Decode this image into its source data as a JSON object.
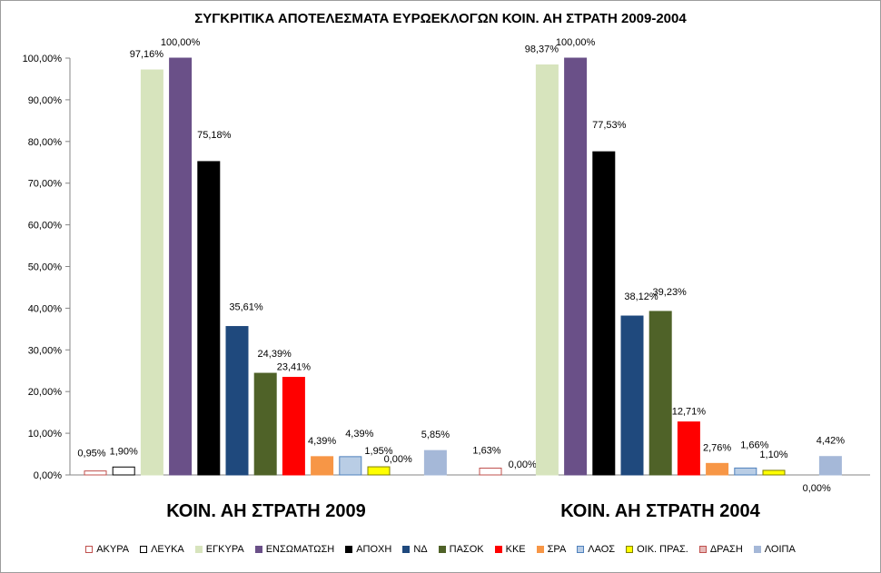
{
  "chart_data": {
    "type": "bar",
    "title": "ΣΥΓΚΡΙΤΙΚΑ ΑΠΟΤΕΛΕΣΜΑΤΑ ΕΥΡΩΕΚΛΟΓΩΝ ΚΟΙΝ. ΑΗ ΣΤΡΑΤΗ 2009-2004",
    "xlabel": "",
    "ylabel": "",
    "ylim": [
      0,
      100
    ],
    "yticks": [
      "0,00%",
      "10,00%",
      "20,00%",
      "30,00%",
      "40,00%",
      "50,00%",
      "60,00%",
      "70,00%",
      "80,00%",
      "90,00%",
      "100,00%"
    ],
    "grid": false,
    "legend_position": "bottom",
    "categories": [
      "ΚΟΙΝ. ΑΗ ΣΤΡΑΤΗ 2009",
      "ΚΟΙΝ. ΑΗ ΣΤΡΑΤΗ 2004"
    ],
    "series": [
      {
        "name": "ΑΚΥΡΑ",
        "color": "#ffffff",
        "stroke": "#c0504d",
        "values": [
          0.95,
          1.63
        ],
        "labels": [
          "0,95%",
          "1,63%"
        ]
      },
      {
        "name": "ΛΕΥΚΑ",
        "color": "#ffffff",
        "stroke": "#000000",
        "values": [
          1.9,
          0.0
        ],
        "labels": [
          "1,90%",
          "0,00%"
        ]
      },
      {
        "name": "ΕΓΚΥΡΑ",
        "color": "#d7e4bd",
        "stroke": "#d7e4bd",
        "values": [
          97.16,
          98.37
        ],
        "labels": [
          "97,16%",
          "98,37%"
        ]
      },
      {
        "name": "ΕΝΣΩΜΑΤΩΣΗ",
        "color": "#6a5088",
        "stroke": "#6a5088",
        "values": [
          100.0,
          100.0
        ],
        "labels": [
          "100,00%",
          "100,00%"
        ]
      },
      {
        "name": "ΑΠΟΧΗ",
        "color": "#000000",
        "stroke": "#000000",
        "values": [
          75.18,
          77.53
        ],
        "labels": [
          "75,18%",
          "77,53%"
        ]
      },
      {
        "name": "ΝΔ",
        "color": "#1f497d",
        "stroke": "#1f497d",
        "values": [
          35.61,
          38.12
        ],
        "labels": [
          "35,61%",
          "38,12%"
        ]
      },
      {
        "name": "ΠΑΣΟΚ",
        "color": "#4f6228",
        "stroke": "#4f6228",
        "values": [
          24.39,
          39.23
        ],
        "labels": [
          "24,39%",
          "39,23%"
        ]
      },
      {
        "name": "ΚΚΕ",
        "color": "#ff0000",
        "stroke": "#ff0000",
        "values": [
          23.41,
          12.71
        ],
        "labels": [
          "23,41%",
          "12,71%"
        ]
      },
      {
        "name": "ΣΡΑ",
        "color": "#f79646",
        "stroke": "#f79646",
        "values": [
          4.39,
          2.76
        ],
        "labels": [
          "4,39%",
          "2,76%"
        ]
      },
      {
        "name": "ΛΑΟΣ",
        "color": "#b9cde5",
        "stroke": "#4f81bd",
        "values": [
          4.39,
          1.66
        ],
        "labels": [
          "4,39%",
          "1,66%"
        ]
      },
      {
        "name": "ΟΙΚ. ΠΡΑΣ.",
        "color": "#ffff00",
        "stroke": "#7f7f00",
        "values": [
          1.95,
          1.1
        ],
        "labels": [
          "1,95%",
          "1,10%"
        ]
      },
      {
        "name": "ΔΡΑΣΗ",
        "color": "#e6b9b8",
        "stroke": "#c0504d",
        "values": [
          0.0,
          0.0
        ],
        "labels": [
          "0,00%",
          "0,00%"
        ]
      },
      {
        "name": "ΛΟΙΠΑ",
        "color": "#a5b8d8",
        "stroke": "#a5b8d8",
        "values": [
          5.85,
          4.42
        ],
        "labels": [
          "5,85%",
          "4,42%"
        ]
      }
    ]
  }
}
